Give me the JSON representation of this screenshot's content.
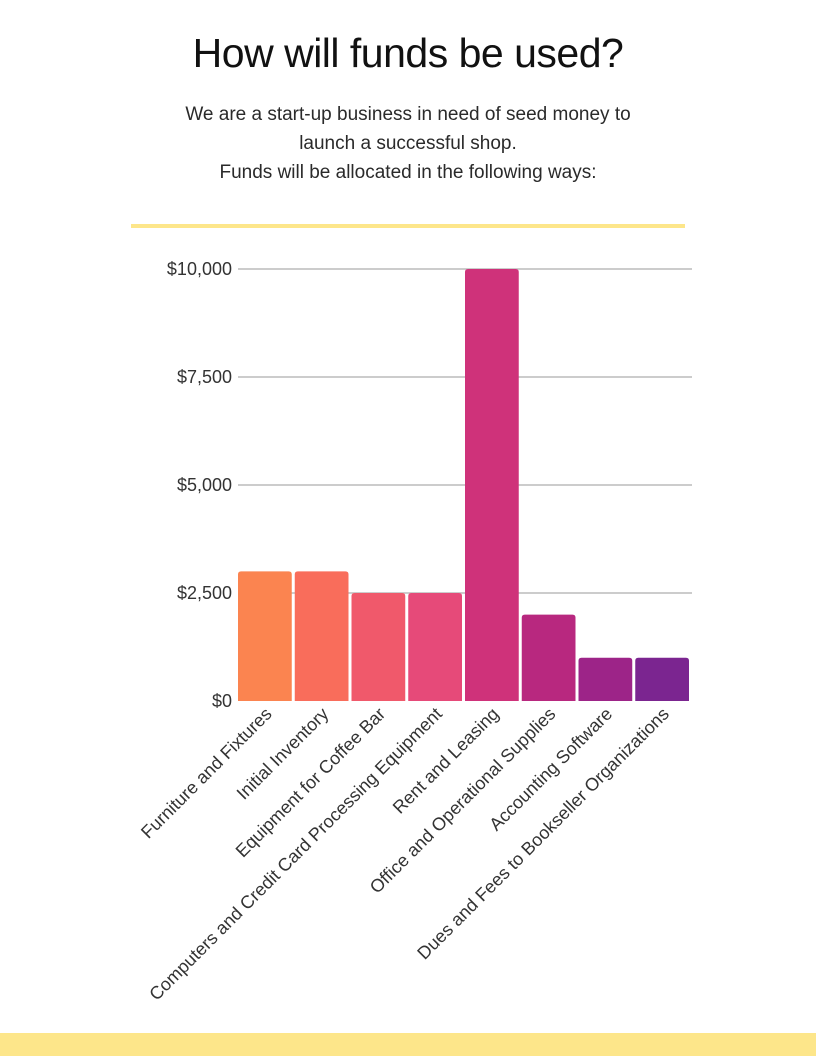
{
  "heading": "How will funds be used?",
  "intro": {
    "line1": "We are a start-up business in need of seed money to",
    "line2": "launch a successful shop.",
    "line3": "Funds will be allocated in the following ways:"
  },
  "colors": {
    "accent_band": "#fde68a",
    "gridline": "#cccccc",
    "bars": [
      "#fb8450",
      "#f96d5b",
      "#f0596b",
      "#e64a79",
      "#cf327a",
      "#b8287f",
      "#9d2488",
      "#7b2590"
    ]
  },
  "chart_data": {
    "type": "bar",
    "title": "",
    "xlabel": "",
    "ylabel": "",
    "categories": [
      "Furniture and Fixtures",
      "Initial Inventory",
      "Equipment for Coffee Bar",
      "Computers and Credit Card Processing Equipment",
      "Rent and Leasing",
      "Office and Operational Supplies",
      "Accounting Software",
      "Dues and Fees to Bookseller Organizations"
    ],
    "values": [
      3000,
      3000,
      2500,
      2500,
      10000,
      2000,
      1000,
      1000
    ],
    "ylim": [
      0,
      10000
    ],
    "yticks": [
      0,
      2500,
      5000,
      7500,
      10000
    ],
    "ytick_labels": [
      "$0",
      "$2,500",
      "$5,000",
      "$7,500",
      "$10,000"
    ],
    "grid": true,
    "legend": "none"
  }
}
